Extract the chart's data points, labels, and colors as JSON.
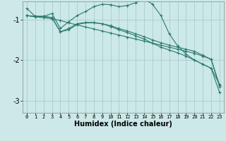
{
  "xlabel": "Humidex (Indice chaleur)",
  "background_color": "#cce8e8",
  "grid_color": "#aacccc",
  "line_color": "#2a7a6a",
  "xlim": [
    -0.5,
    23.5
  ],
  "ylim": [
    -3.3,
    -0.55
  ],
  "yticks": [
    -3,
    -2,
    -1
  ],
  "xticks": [
    0,
    1,
    2,
    3,
    4,
    5,
    6,
    7,
    8,
    9,
    10,
    11,
    12,
    13,
    14,
    15,
    16,
    17,
    18,
    19,
    20,
    21,
    22,
    23
  ],
  "lines": [
    {
      "x": [
        0,
        1,
        2,
        3,
        4,
        5,
        6,
        7,
        8,
        9,
        10,
        11,
        12,
        13,
        14,
        15,
        16,
        17,
        18,
        19,
        20,
        21,
        22,
        23
      ],
      "y": [
        -0.72,
        -0.92,
        -0.92,
        -0.85,
        -1.22,
        -1.05,
        -0.9,
        -0.8,
        -0.68,
        -0.62,
        -0.63,
        -0.68,
        -0.65,
        -0.58,
        -0.48,
        -0.62,
        -0.9,
        -1.35,
        -1.65,
        -1.85,
        -2.0,
        -2.1,
        -2.2,
        -2.6
      ]
    },
    {
      "x": [
        0,
        1,
        2,
        3,
        4,
        5,
        6,
        7,
        8,
        9,
        10,
        11,
        12,
        13,
        14,
        15,
        16,
        17,
        18,
        19,
        20,
        21,
        22,
        23
      ],
      "y": [
        -0.9,
        -0.93,
        -0.95,
        -0.98,
        -1.02,
        -1.08,
        -1.13,
        -1.18,
        -1.23,
        -1.28,
        -1.33,
        -1.38,
        -1.43,
        -1.48,
        -1.53,
        -1.58,
        -1.63,
        -1.68,
        -1.73,
        -1.78,
        -1.83,
        -1.9,
        -1.98,
        -2.65
      ]
    },
    {
      "x": [
        0,
        1,
        2,
        3,
        4,
        5,
        6,
        7,
        8,
        9,
        10,
        11,
        12,
        13,
        14,
        15,
        16,
        17,
        18,
        19,
        20,
        21,
        22,
        23
      ],
      "y": [
        -0.9,
        -0.92,
        -0.92,
        -0.95,
        -1.3,
        -1.22,
        -1.1,
        -1.07,
        -1.07,
        -1.1,
        -1.15,
        -1.22,
        -1.28,
        -1.35,
        -1.42,
        -1.5,
        -1.57,
        -1.63,
        -1.68,
        -1.73,
        -1.78,
        -1.88,
        -1.98,
        -2.62
      ]
    },
    {
      "x": [
        0,
        1,
        2,
        3,
        4,
        5,
        6,
        7,
        8,
        9,
        10,
        11,
        12,
        13,
        14,
        15,
        16,
        17,
        18,
        19,
        20,
        21,
        22,
        23
      ],
      "y": [
        -0.9,
        -0.92,
        -0.92,
        -0.95,
        -1.3,
        -1.25,
        -1.12,
        -1.08,
        -1.08,
        -1.1,
        -1.17,
        -1.25,
        -1.32,
        -1.4,
        -1.48,
        -1.58,
        -1.68,
        -1.75,
        -1.82,
        -1.9,
        -2.0,
        -2.1,
        -2.2,
        -2.8
      ]
    }
  ]
}
